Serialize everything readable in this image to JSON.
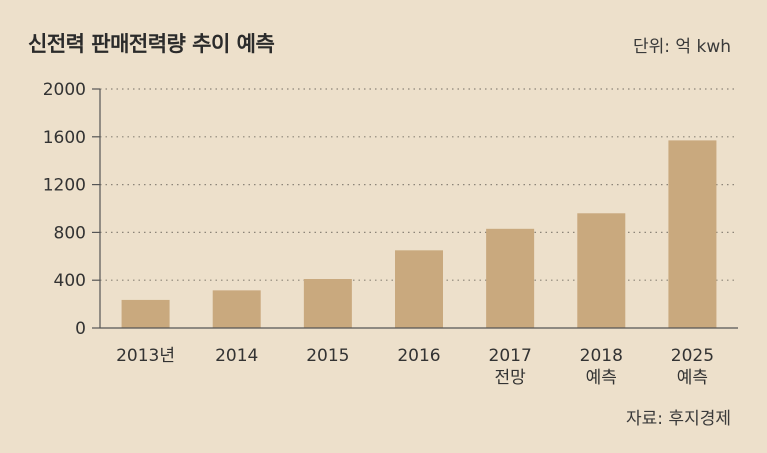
{
  "chart_data": {
    "type": "bar",
    "title": "신전력 판매전력량 추이 예측",
    "unit_label": "단위: 억 kwh",
    "source": "자료: 후지경제",
    "categories": [
      [
        "2013년"
      ],
      [
        "2014"
      ],
      [
        "2015"
      ],
      [
        "2016"
      ],
      [
        "2017",
        "전망"
      ],
      [
        "2018",
        "예측"
      ],
      [
        "2025",
        "예측"
      ]
    ],
    "values": [
      235,
      315,
      410,
      650,
      830,
      960,
      1570
    ],
    "ylim": [
      0,
      2000
    ],
    "yticks": [
      0,
      400,
      800,
      1200,
      1600,
      2000
    ],
    "grid": true,
    "bar_color": "#c9a97e"
  }
}
